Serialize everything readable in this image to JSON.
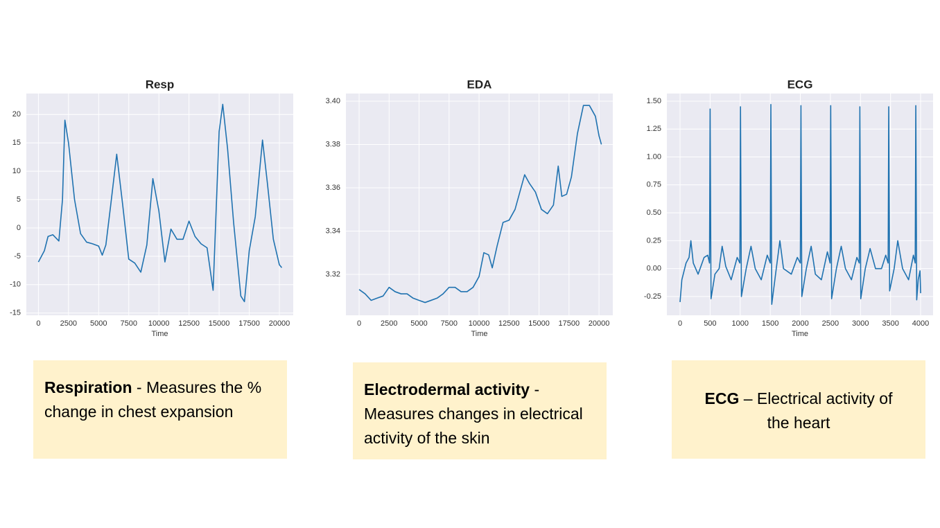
{
  "chart_data": [
    {
      "type": "line",
      "title": "Resp",
      "xlabel": "Time",
      "color": "#1f72b0",
      "grid": true,
      "x": [
        0,
        500,
        800,
        1200,
        1700,
        2000,
        2200,
        2500,
        3000,
        3500,
        4000,
        4500,
        5000,
        5300,
        5600,
        6000,
        6500,
        7000,
        7500,
        8000,
        8500,
        9000,
        9500,
        10000,
        10500,
        11000,
        11500,
        12000,
        12500,
        13000,
        13500,
        14000,
        14500,
        15000,
        15300,
        15700,
        16200,
        16800,
        17100,
        17500,
        18000,
        18600,
        19000,
        19500,
        20000,
        20200
      ],
      "values": [
        -6,
        -4,
        -1.5,
        -1.2,
        -2.3,
        5,
        19,
        15,
        5,
        -1,
        -2.5,
        -2.8,
        -3.2,
        -4.8,
        -3,
        4,
        13,
        4,
        -5.5,
        -6.2,
        -7.8,
        -3,
        8.7,
        3,
        -6,
        -0.2,
        -2,
        -2,
        1.2,
        -1.5,
        -2.8,
        -3.5,
        -11,
        17,
        21.8,
        14,
        1,
        -12,
        -13,
        -4,
        2,
        15.5,
        8,
        -2,
        -6.5,
        -7
      ],
      "xlim": [
        -1000,
        21150
      ],
      "ylim": [
        -15.4,
        23.7
      ],
      "xticks": [
        0,
        2500,
        5000,
        7500,
        10000,
        12500,
        15000,
        17500,
        20000
      ],
      "yticks": [
        -15,
        -10,
        -5,
        0,
        5,
        10,
        15,
        20
      ]
    },
    {
      "type": "line",
      "title": "EDA",
      "xlabel": "Time",
      "color": "#1f72b0",
      "grid": true,
      "x": [
        0,
        500,
        1000,
        1500,
        2000,
        2500,
        3000,
        3500,
        4000,
        4500,
        5000,
        5500,
        6000,
        6500,
        7000,
        7500,
        8000,
        8500,
        9000,
        9500,
        10000,
        10400,
        10800,
        11100,
        11500,
        12000,
        12500,
        13000,
        13500,
        13800,
        14200,
        14700,
        15200,
        15700,
        16200,
        16600,
        16900,
        17300,
        17700,
        18200,
        18700,
        19200,
        19700,
        20000,
        20200
      ],
      "values": [
        3.313,
        3.311,
        3.308,
        3.309,
        3.31,
        3.314,
        3.312,
        3.311,
        3.311,
        3.309,
        3.308,
        3.307,
        3.308,
        3.309,
        3.311,
        3.314,
        3.314,
        3.312,
        3.312,
        3.314,
        3.319,
        3.33,
        3.329,
        3.323,
        3.333,
        3.344,
        3.345,
        3.35,
        3.36,
        3.366,
        3.362,
        3.358,
        3.35,
        3.348,
        3.352,
        3.37,
        3.356,
        3.357,
        3.365,
        3.385,
        3.398,
        3.398,
        3.393,
        3.384,
        3.38
      ],
      "xlim": [
        -1100,
        21150
      ],
      "ylim": [
        3.3011,
        3.4035
      ],
      "xticks": [
        0,
        2500,
        5000,
        7500,
        10000,
        12500,
        15000,
        17500,
        20000
      ],
      "yticks": [
        3.32,
        3.34,
        3.36,
        3.38,
        {
          "value": 3.4,
          "label": "3.40"
        }
      ]
    },
    {
      "type": "line",
      "title": "ECG",
      "xlabel": "Time",
      "color": "#1f72b0",
      "grid": true,
      "x": [
        0,
        30,
        100,
        150,
        180,
        220,
        300,
        400,
        460,
        490,
        500,
        515,
        580,
        650,
        700,
        760,
        850,
        950,
        995,
        1005,
        1020,
        1100,
        1180,
        1250,
        1350,
        1450,
        1500,
        1510,
        1525,
        1600,
        1660,
        1720,
        1850,
        1950,
        2000,
        2010,
        2025,
        2100,
        2180,
        2250,
        2350,
        2450,
        2495,
        2505,
        2520,
        2600,
        2680,
        2750,
        2850,
        2940,
        2980,
        2990,
        3005,
        3080,
        3160,
        3250,
        3350,
        3420,
        3460,
        3470,
        3485,
        3560,
        3620,
        3700,
        3800,
        3880,
        3910,
        3920,
        3935,
        3960,
        3990,
        4000
      ],
      "values": [
        -0.3,
        -0.1,
        0.05,
        0.1,
        0.25,
        0.05,
        -0.05,
        0.1,
        0.12,
        0.05,
        1.43,
        -0.27,
        -0.05,
        0,
        0.2,
        0.02,
        -0.1,
        0.1,
        0.05,
        1.45,
        -0.25,
        0,
        0.2,
        0,
        -0.1,
        0.12,
        0.05,
        1.47,
        -0.32,
        0,
        0.25,
        0,
        -0.05,
        0.1,
        0.05,
        1.46,
        -0.25,
        0,
        0.2,
        -0.05,
        -0.1,
        0.15,
        0.05,
        1.46,
        -0.27,
        0,
        0.2,
        0,
        -0.1,
        0.1,
        0.05,
        1.45,
        -0.27,
        0,
        0.18,
        0,
        0,
        0.12,
        0.05,
        1.45,
        -0.2,
        0,
        0.25,
        0,
        -0.1,
        0.12,
        0.05,
        1.46,
        -0.28,
        -0.1,
        -0.02,
        -0.22
      ],
      "xlim": [
        -219,
        4207
      ],
      "ylim": [
        -0.418,
        1.568
      ],
      "xticks": [
        0,
        500,
        1000,
        1500,
        2000,
        2500,
        3000,
        3500,
        4000
      ],
      "yticks": [
        -0.25,
        {
          "value": 0,
          "label": "0.00"
        },
        0.25,
        {
          "value": 0.5,
          "label": "0.50"
        },
        0.75,
        {
          "value": 1,
          "label": "1.00"
        },
        1.25,
        {
          "value": 1.5,
          "label": "1.50"
        }
      ]
    }
  ],
  "notes": [
    {
      "term": "Respiration",
      "text": "- Measures the % change in chest expansion"
    },
    {
      "term": "Electrodermal activity",
      "text": "- Measures changes in electrical activity of the skin"
    },
    {
      "term": "ECG",
      "text": "– Electrical activity of the heart"
    }
  ]
}
